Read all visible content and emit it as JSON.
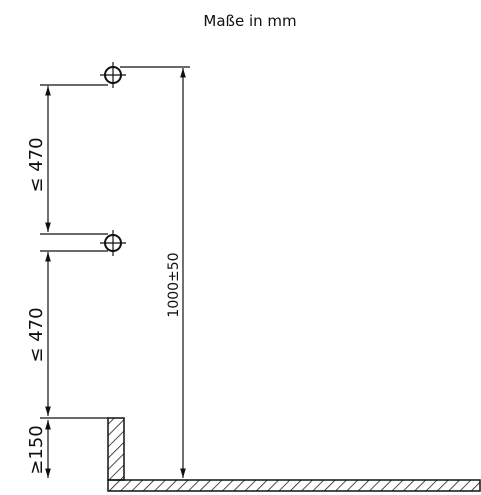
{
  "title": "Maße in mm",
  "dimensions": {
    "upper_spacing": "≤ 470",
    "lower_spacing": "≤ 470",
    "height": "1000±50",
    "min_height": "≥150"
  }
}
